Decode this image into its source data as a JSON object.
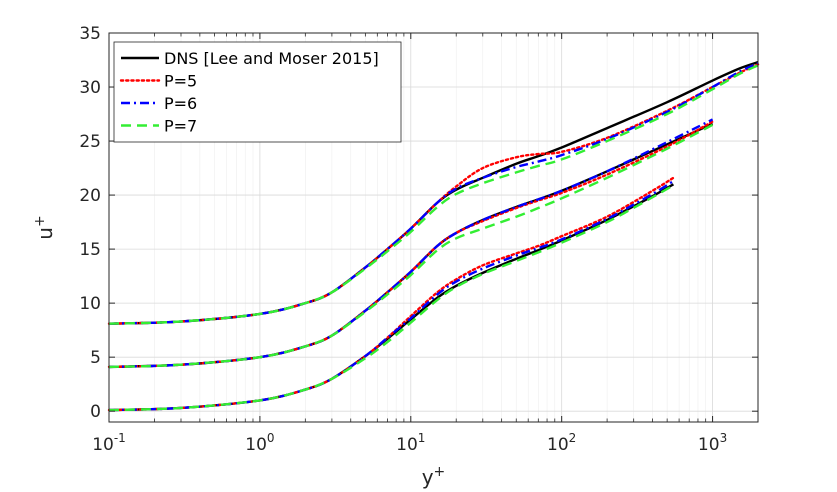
{
  "chart_data": {
    "type": "line",
    "xlabel_base": "y",
    "xlabel_sup": "+",
    "ylabel_base": "u",
    "ylabel_sup": "+",
    "xscale": "log",
    "xlim": [
      0.1,
      2000
    ],
    "ylim": [
      -1,
      35
    ],
    "x_ticks": [
      {
        "value": 0.1,
        "base": "10",
        "exp": "-1"
      },
      {
        "value": 1,
        "base": "10",
        "exp": "0"
      },
      {
        "value": 10,
        "base": "10",
        "exp": "1"
      },
      {
        "value": 100,
        "base": "10",
        "exp": "2"
      },
      {
        "value": 1000,
        "base": "10",
        "exp": "3"
      }
    ],
    "y_ticks": [
      0,
      5,
      10,
      15,
      20,
      25,
      30,
      35
    ],
    "grid": true,
    "minor_grid": true,
    "legend_position": "top-left",
    "series": [
      {
        "name": "DNS [Lee and Moser 2015]",
        "color": "#000000",
        "style": "solid",
        "curves": [
          {
            "x": [
              0.1,
              0.3,
              1,
              2,
              3,
              5,
              7,
              10,
              15,
              20,
              30,
              50,
              70,
              100,
              200,
              500,
              1000,
              1500,
              2000
            ],
            "y": [
              8.1,
              8.3,
              9.0,
              10.0,
              11.0,
              13.3,
              15.0,
              16.9,
              19.3,
              20.5,
              21.6,
              22.9,
              23.6,
              24.4,
              26.2,
              28.6,
              30.6,
              31.7,
              32.3
            ]
          },
          {
            "x": [
              0.1,
              0.3,
              1,
              2,
              3,
              5,
              7,
              10,
              15,
              20,
              30,
              50,
              70,
              100,
              200,
              500,
              1000
            ],
            "y": [
              4.1,
              4.3,
              5.0,
              6.0,
              7.0,
              9.3,
              11.0,
              12.9,
              15.3,
              16.5,
              17.7,
              18.9,
              19.6,
              20.4,
              22.2,
              24.7,
              26.6
            ]
          },
          {
            "x": [
              0.1,
              0.3,
              1,
              2,
              3,
              5,
              7,
              10,
              15,
              20,
              30,
              50,
              70,
              100,
              200,
              400,
              550
            ],
            "y": [
              0.1,
              0.3,
              1.0,
              2.0,
              3.0,
              5.1,
              6.7,
              8.5,
              10.5,
              11.6,
              12.8,
              14.1,
              14.9,
              15.8,
              17.7,
              19.9,
              21.0
            ]
          }
        ]
      },
      {
        "name": "P=5",
        "color": "#ff0000",
        "style": "dotted",
        "curves": [
          {
            "x": [
              0.1,
              0.3,
              1,
              2,
              3,
              5,
              7,
              10,
              15,
              20,
              30,
              50,
              70,
              100,
              200,
              500,
              1000,
              1500,
              2000
            ],
            "y": [
              8.1,
              8.3,
              9.0,
              10.0,
              11.0,
              13.3,
              15.0,
              16.9,
              19.3,
              20.8,
              22.5,
              23.5,
              23.8,
              24.0,
              25.3,
              27.8,
              30.0,
              31.3,
              32.1
            ]
          },
          {
            "x": [
              0.1,
              0.3,
              1,
              2,
              3,
              5,
              7,
              10,
              15,
              20,
              30,
              50,
              70,
              100,
              200,
              500,
              1000
            ],
            "y": [
              4.1,
              4.3,
              5.0,
              6.0,
              7.0,
              9.3,
              11.0,
              12.9,
              15.3,
              16.5,
              17.6,
              18.8,
              19.5,
              20.2,
              21.9,
              24.5,
              26.8
            ]
          },
          {
            "x": [
              0.1,
              0.3,
              1,
              2,
              3,
              5,
              7,
              10,
              15,
              20,
              30,
              50,
              70,
              100,
              200,
              400,
              550
            ],
            "y": [
              0.1,
              0.3,
              1.0,
              2.0,
              3.0,
              5.1,
              6.8,
              8.8,
              11.0,
              12.2,
              13.5,
              14.6,
              15.3,
              16.2,
              18.0,
              20.4,
              21.6
            ]
          }
        ]
      },
      {
        "name": "P=6",
        "color": "#0000ff",
        "style": "dashdot",
        "curves": [
          {
            "x": [
              0.1,
              0.3,
              1,
              2,
              3,
              5,
              7,
              10,
              15,
              20,
              30,
              50,
              70,
              100,
              200,
              500,
              1000,
              1500,
              2000
            ],
            "y": [
              8.1,
              8.3,
              9.0,
              10.0,
              11.0,
              13.3,
              15.0,
              16.9,
              19.3,
              20.6,
              21.6,
              22.6,
              23.1,
              23.7,
              25.2,
              27.7,
              30.0,
              31.4,
              32.2
            ]
          },
          {
            "x": [
              0.1,
              0.3,
              1,
              2,
              3,
              5,
              7,
              10,
              15,
              20,
              30,
              50,
              70,
              100,
              200,
              500,
              1000
            ],
            "y": [
              4.1,
              4.3,
              5.0,
              6.0,
              7.0,
              9.3,
              11.0,
              12.9,
              15.3,
              16.5,
              17.7,
              18.9,
              19.6,
              20.4,
              22.2,
              24.9,
              27.0
            ]
          },
          {
            "x": [
              0.1,
              0.3,
              1,
              2,
              3,
              5,
              7,
              10,
              15,
              20,
              30,
              50,
              70,
              100,
              200,
              400,
              550
            ],
            "y": [
              0.1,
              0.3,
              1.0,
              2.0,
              3.0,
              5.1,
              6.8,
              8.6,
              10.8,
              12.0,
              13.2,
              14.4,
              15.1,
              15.9,
              17.8,
              20.1,
              21.3
            ]
          }
        ]
      },
      {
        "name": "P=7",
        "color": "#33ee33",
        "style": "dashed",
        "curves": [
          {
            "x": [
              0.1,
              0.3,
              1,
              2,
              3,
              5,
              7,
              10,
              15,
              20,
              30,
              50,
              70,
              100,
              200,
              500,
              1000,
              1500,
              2000
            ],
            "y": [
              8.1,
              8.3,
              9.0,
              10.0,
              11.0,
              13.2,
              14.8,
              16.6,
              18.9,
              20.1,
              21.1,
              22.1,
              22.7,
              23.3,
              25.0,
              27.5,
              29.8,
              31.2,
              32.0
            ]
          },
          {
            "x": [
              0.1,
              0.3,
              1,
              2,
              3,
              5,
              7,
              10,
              15,
              20,
              30,
              50,
              70,
              100,
              200,
              500,
              1000
            ],
            "y": [
              4.1,
              4.3,
              5.0,
              6.0,
              7.0,
              9.2,
              10.8,
              12.6,
              14.9,
              16.0,
              16.9,
              18.0,
              18.8,
              19.7,
              21.6,
              24.3,
              26.5
            ]
          },
          {
            "x": [
              0.1,
              0.3,
              1,
              2,
              3,
              5,
              7,
              10,
              15,
              20,
              30,
              50,
              70,
              100,
              200,
              400,
              550
            ],
            "y": [
              0.1,
              0.3,
              1.0,
              2.0,
              3.0,
              4.9,
              6.4,
              8.2,
              10.3,
              11.5,
              12.7,
              13.9,
              14.7,
              15.6,
              17.5,
              19.8,
              20.9
            ]
          }
        ]
      }
    ]
  }
}
